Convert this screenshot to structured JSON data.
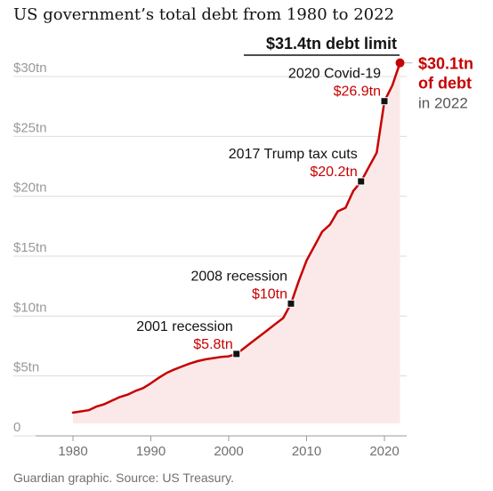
{
  "title": "US government’s total debt from 1980 to 2022",
  "source": "Guardian graphic. Source: US Treasury.",
  "colors": {
    "line": "#c70000",
    "area": "#fbe9e9",
    "grid": "#dcdcdc",
    "axis_text": "#999999",
    "annotation": "#121212",
    "highlight": "#c70000"
  },
  "chart_data": {
    "type": "area",
    "title": "US government’s total debt from 1980 to 2022",
    "xlabel": "",
    "ylabel": "",
    "xlim": [
      1975,
      2023
    ],
    "ylim": [
      0,
      31.4
    ],
    "x_ticks": [
      1980,
      1990,
      2000,
      2010,
      2020
    ],
    "x_tick_labels": [
      "1980",
      "1990",
      "2000",
      "2010",
      "2020"
    ],
    "y_ticks": [
      0,
      5,
      10,
      15,
      20,
      25,
      30
    ],
    "y_tick_labels": [
      "0",
      "$5tn",
      "$10tn",
      "$15tn",
      "$20tn",
      "$25tn",
      "$30tn"
    ],
    "grid": true,
    "series": [
      {
        "x": [
          1980,
          1981,
          1982,
          1983,
          1984,
          1985,
          1986,
          1987,
          1988,
          1989,
          1990,
          1991,
          1992,
          1993,
          1994,
          1995,
          1996,
          1997,
          1998,
          1999,
          2000,
          2001,
          2002,
          2003,
          2004,
          2005,
          2006,
          2007,
          2008,
          2009,
          2010,
          2011,
          2012,
          2013,
          2014,
          2015,
          2016,
          2017,
          2018,
          2019,
          2020,
          2021,
          2022
        ],
        "values": [
          0.9,
          1.0,
          1.1,
          1.4,
          1.6,
          1.9,
          2.2,
          2.4,
          2.7,
          2.95,
          3.35,
          3.8,
          4.2,
          4.5,
          4.75,
          5.0,
          5.2,
          5.35,
          5.45,
          5.55,
          5.6,
          5.8,
          6.3,
          6.8,
          7.3,
          7.8,
          8.3,
          8.8,
          10.0,
          11.9,
          13.6,
          14.8,
          16.0,
          16.6,
          17.7,
          18.0,
          19.4,
          20.2,
          21.4,
          22.6,
          26.9,
          28.2,
          30.1
        ]
      }
    ],
    "annotations": [
      {
        "x": 2001,
        "y": 5.8,
        "label": "2001 recession",
        "value": "$5.8tn"
      },
      {
        "x": 2008,
        "y": 10.0,
        "label": "2008 recession",
        "value": "$10tn"
      },
      {
        "x": 2017,
        "y": 20.2,
        "label": "2017 Trump tax cuts",
        "value": "$20.2tn"
      },
      {
        "x": 2020,
        "y": 26.9,
        "label": "2020 Covid-19",
        "value": "$26.9tn"
      }
    ],
    "end_point": {
      "x": 2022,
      "y": 30.1,
      "line1": "$30.1tn",
      "line2": "of debt",
      "line3": "in 2022"
    },
    "reference_line": {
      "y": 31.4,
      "label": "$31.4tn debt limit"
    }
  }
}
